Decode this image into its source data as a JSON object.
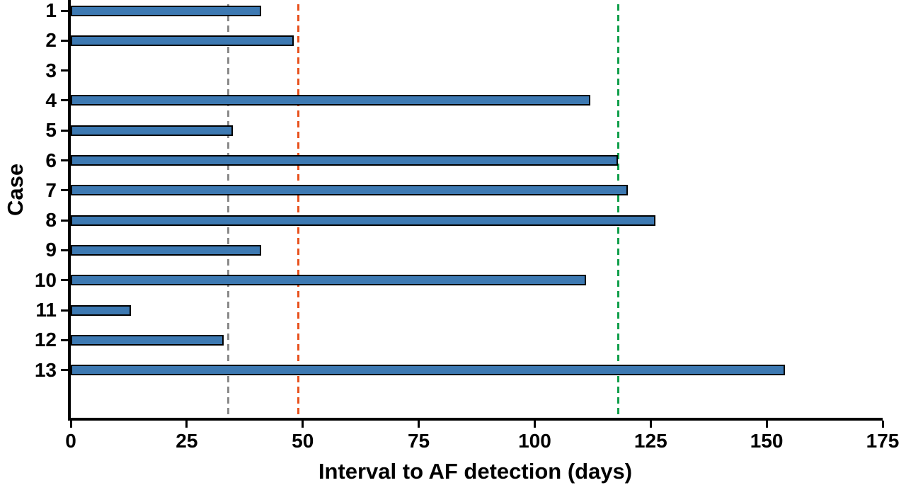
{
  "chart_data": {
    "type": "bar",
    "orientation": "horizontal",
    "title": "",
    "xlabel": "Interval to AF detection (days)",
    "ylabel": "Case",
    "xlim": [
      0,
      175
    ],
    "xticks": [
      0,
      25,
      50,
      75,
      100,
      125,
      150,
      175
    ],
    "categories": [
      "1",
      "2",
      "3",
      "4",
      "5",
      "6",
      "7",
      "8",
      "9",
      "10",
      "11",
      "12",
      "13"
    ],
    "values": [
      41,
      48,
      0,
      112,
      35,
      118,
      120,
      126,
      41,
      111,
      13,
      33,
      154
    ],
    "bar_color": "#3d79b2",
    "bar_border_color": "#000000",
    "axis_color": "#000000",
    "grid": false,
    "legend": null,
    "reference_lines": [
      {
        "name": "gray",
        "value": 34,
        "color": "#8a8a8a",
        "style": "dashed"
      },
      {
        "name": "orange",
        "value": 49,
        "color": "#e8511d",
        "style": "dashed"
      },
      {
        "name": "green",
        "value": 118,
        "color": "#0f9e4a",
        "style": "dashed"
      }
    ]
  }
}
